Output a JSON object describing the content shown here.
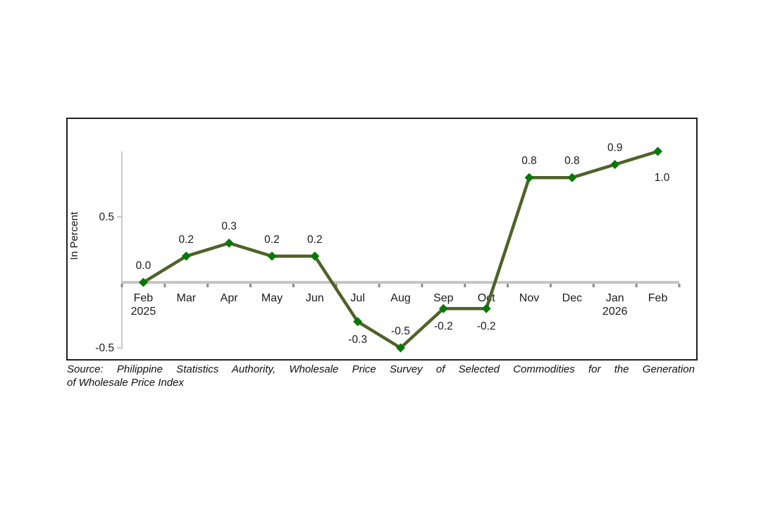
{
  "page": {
    "background": "#ffffff"
  },
  "source": {
    "line1": "Source: Philippine Statistics Authority, Wholesale Price Survey of Selected Commodities for the Generation",
    "line2": "of Wholesale Price Index"
  },
  "chart_data": {
    "type": "line",
    "title": "",
    "xlabel": "",
    "ylabel": "In Percent",
    "ylim": [
      -0.5,
      1.0
    ],
    "yticks": [
      0.5,
      -0.5
    ],
    "ytick_labels": [
      "0.5",
      "-0.5"
    ],
    "grid": false,
    "legend_position": "none",
    "categories": [
      "Feb 2025",
      "Mar",
      "Apr",
      "May",
      "Jun",
      "Jul",
      "Aug",
      "Sep",
      "Oct",
      "Nov",
      "Dec",
      "Jan 2026",
      "Feb"
    ],
    "x_tick_labels": [
      {
        "label": "Feb",
        "sublabel": "2025"
      },
      {
        "label": "Mar",
        "sublabel": ""
      },
      {
        "label": "Apr",
        "sublabel": ""
      },
      {
        "label": "May",
        "sublabel": ""
      },
      {
        "label": "Jun",
        "sublabel": ""
      },
      {
        "label": "Jul",
        "sublabel": ""
      },
      {
        "label": "Aug",
        "sublabel": ""
      },
      {
        "label": "Sep",
        "sublabel": ""
      },
      {
        "label": "Oct",
        "sublabel": ""
      },
      {
        "label": "Nov",
        "sublabel": ""
      },
      {
        "label": "Dec",
        "sublabel": ""
      },
      {
        "label": "Jan",
        "sublabel": "2026"
      },
      {
        "label": "Feb",
        "sublabel": ""
      }
    ],
    "values": [
      0.0,
      0.2,
      0.3,
      0.2,
      0.2,
      -0.3,
      -0.5,
      -0.2,
      -0.2,
      0.8,
      0.8,
      0.9,
      1.0
    ],
    "value_labels": [
      "0.0",
      "0.2",
      "0.3",
      "0.2",
      "0.2",
      "-0.3",
      "-0.5",
      "-0.2",
      "-0.2",
      "0.8",
      "0.8",
      "0.9",
      "1.0"
    ],
    "label_positions": [
      "above",
      "above",
      "above",
      "above",
      "above",
      "below",
      "above",
      "below",
      "below",
      "above",
      "above",
      "above",
      "below-right"
    ],
    "colors": {
      "line": "#4F6228",
      "marker": "#077807",
      "axis": "#C9C9C9",
      "zero_line": "#C6C6C6",
      "tick": "#8C8C8C",
      "text": "#1a1a1a"
    }
  }
}
